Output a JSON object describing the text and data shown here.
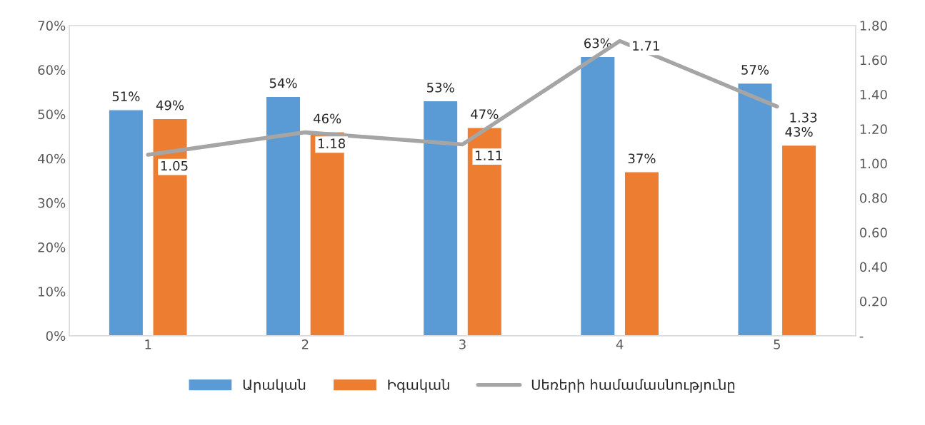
{
  "chart_data": {
    "type": "bar",
    "categories": [
      "1",
      "2",
      "3",
      "4",
      "5"
    ],
    "series": [
      {
        "name": "Արական",
        "color": "#5b9bd5",
        "values": [
          51,
          54,
          53,
          63,
          57
        ],
        "value_labels": [
          "51%",
          "54%",
          "53%",
          "63%",
          "57%"
        ]
      },
      {
        "name": "Իգական",
        "color": "#ed7d31",
        "values": [
          49,
          46,
          47,
          37,
          43
        ],
        "value_labels": [
          "49%",
          "46%",
          "47%",
          "37%",
          "43%"
        ]
      },
      {
        "name": "Սեռերի համամասնությունը",
        "type": "line",
        "axis": "y2",
        "color": "#a5a5a5",
        "values": [
          1.05,
          1.18,
          1.11,
          1.71,
          1.33
        ],
        "value_labels": [
          "1.05",
          "1.18",
          "1.11",
          "1.71",
          "1.33"
        ]
      }
    ],
    "ylim": [
      0,
      70
    ],
    "yticks": [
      {
        "value": 0,
        "label": "0%"
      },
      {
        "value": 10,
        "label": "10%"
      },
      {
        "value": 20,
        "label": "20%"
      },
      {
        "value": 30,
        "label": "30%"
      },
      {
        "value": 40,
        "label": "40%"
      },
      {
        "value": 50,
        "label": "50%"
      },
      {
        "value": 60,
        "label": "60%"
      },
      {
        "value": 70,
        "label": "70%"
      }
    ],
    "y2lim": [
      0,
      1.8
    ],
    "y2ticks": [
      {
        "value": 0,
        "label": "-"
      },
      {
        "value": 0.2,
        "label": "0.20"
      },
      {
        "value": 0.4,
        "label": "0.40"
      },
      {
        "value": 0.6,
        "label": "0.60"
      },
      {
        "value": 0.8,
        "label": "0.80"
      },
      {
        "value": 1.0,
        "label": "1.00"
      },
      {
        "value": 1.2,
        "label": "1.20"
      },
      {
        "value": 1.4,
        "label": "1.40"
      },
      {
        "value": 1.6,
        "label": "1.60"
      },
      {
        "value": 1.8,
        "label": "1.80"
      }
    ],
    "grid": false,
    "legend": "bottom",
    "marker": "none",
    "line_style": "solid"
  }
}
